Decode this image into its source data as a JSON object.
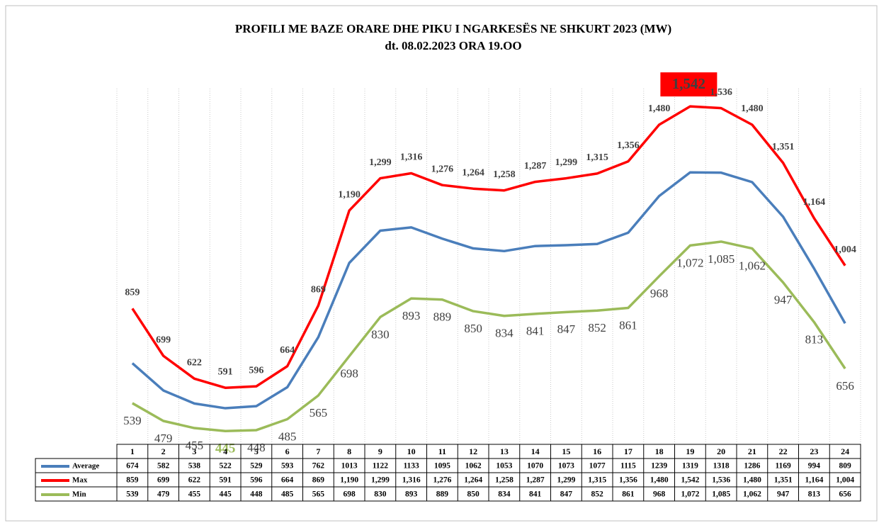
{
  "chart_data": {
    "type": "line",
    "title": "PROFILI  ME BAZE ORARE DHE PIKU I NGARKESËS NE SHKURT 2023 (MW)",
    "subtitle": "dt. 08.02.2023  ORA 19.OO",
    "categories": [
      "1",
      "2",
      "3",
      "4",
      "5",
      "6",
      "7",
      "8",
      "9",
      "10",
      "11",
      "12",
      "13",
      "14",
      "15",
      "16",
      "17",
      "18",
      "19",
      "20",
      "21",
      "22",
      "23",
      "24"
    ],
    "ylim": [
      400,
      1650
    ],
    "grid": true,
    "series": [
      {
        "name": "Average",
        "color": "#4a7ebb",
        "values": [
          674,
          582,
          538,
          522,
          529,
          593,
          762,
          1013,
          1122,
          1133,
          1095,
          1062,
          1053,
          1070,
          1073,
          1077,
          1115,
          1239,
          1319,
          1318,
          1286,
          1169,
          994,
          809
        ]
      },
      {
        "name": "Max",
        "color": "#ff0000",
        "values": [
          859,
          699,
          622,
          591,
          596,
          664,
          869,
          1190,
          1299,
          1316,
          1276,
          1264,
          1258,
          1287,
          1299,
          1315,
          1356,
          1480,
          1542,
          1536,
          1480,
          1351,
          1164,
          1004
        ],
        "value_labels": [
          "859",
          "699",
          "622",
          "591",
          "596",
          "664",
          "869",
          "1,190",
          "1,299",
          "1,316",
          "1,276",
          "1,264",
          "1,258",
          "1,287",
          "1,299",
          "1,315",
          "1,356",
          "1,480",
          "1,542",
          "1,536",
          "1,480",
          "1,351",
          "1,164",
          "1,004"
        ]
      },
      {
        "name": "Min",
        "color": "#9bbb59",
        "values": [
          539,
          479,
          455,
          445,
          448,
          485,
          565,
          698,
          830,
          893,
          889,
          850,
          834,
          841,
          847,
          852,
          861,
          968,
          1072,
          1085,
          1062,
          947,
          813,
          656
        ],
        "value_labels": [
          "539",
          "479",
          "455",
          "445",
          "448",
          "485",
          "565",
          "698",
          "830",
          "893",
          "889",
          "850",
          "834",
          "841",
          "847",
          "852",
          "861",
          "968",
          "1,072",
          "1,085",
          "1,062",
          "947",
          "813",
          "656"
        ]
      }
    ]
  }
}
